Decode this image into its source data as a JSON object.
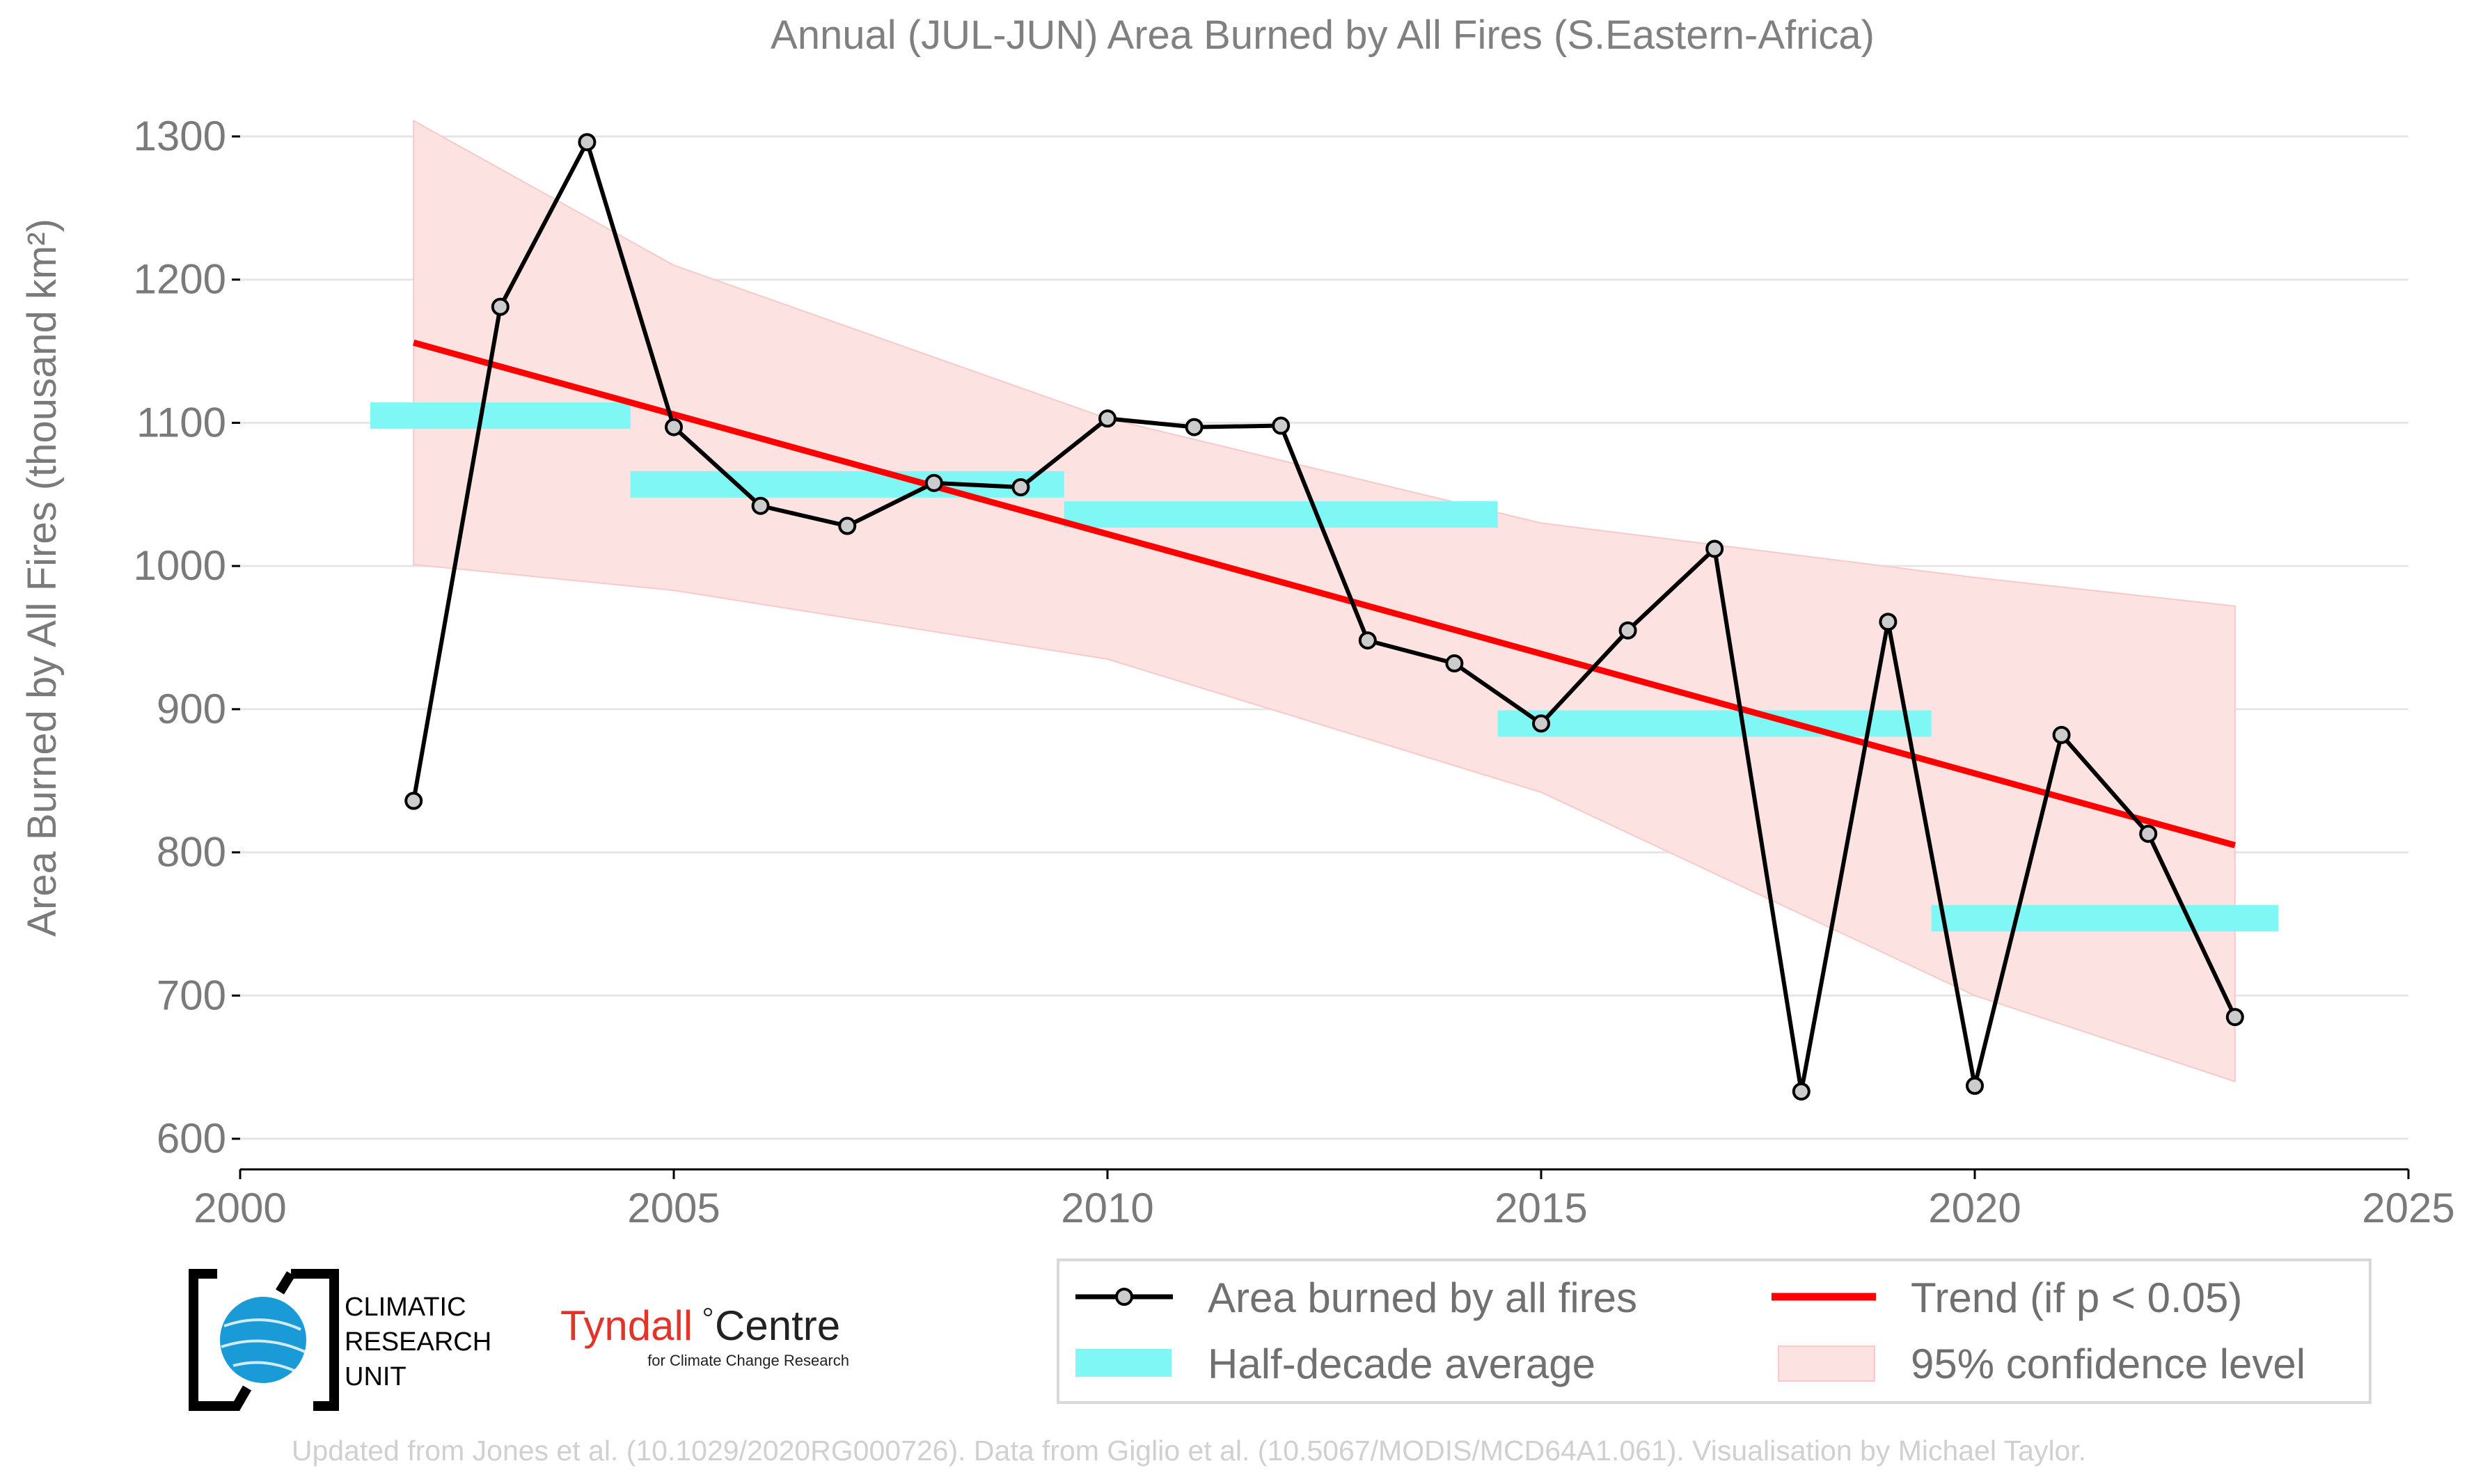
{
  "chart_data": {
    "type": "line",
    "title": "Annual (JUL-JUN) Area Burned by All Fires (S.Eastern-Africa)",
    "ylabel": "Area Burned by All Fires (thousand km²)",
    "xlabel": "",
    "xlim": [
      2000,
      2025
    ],
    "ylim": [
      600,
      1300
    ],
    "xticks": [
      "2000",
      "2005",
      "2010",
      "2015",
      "2020",
      "2025"
    ],
    "yticks": [
      "600",
      "700",
      "800",
      "900",
      "1000",
      "1100",
      "1200",
      "1300"
    ],
    "grid": "horizontal",
    "series": [
      {
        "name": "Area burned by all fires",
        "color": "#000000",
        "x": [
          2002,
          2003,
          2004,
          2005,
          2006,
          2007,
          2008,
          2009,
          2010,
          2011,
          2012,
          2013,
          2014,
          2015,
          2016,
          2017,
          2018,
          2019,
          2020,
          2021,
          2022,
          2023
        ],
        "y": [
          836,
          1181,
          1296,
          1097,
          1042,
          1028,
          1058,
          1055,
          1103,
          1097,
          1098,
          948,
          932,
          890,
          955,
          1012,
          633,
          961,
          637,
          882,
          813,
          685
        ]
      }
    ],
    "half_decade_average": {
      "name": "Half-decade average",
      "color": "#7ff7f5",
      "segments": [
        {
          "x0": 2001.5,
          "x1": 2004.5,
          "y": 1105
        },
        {
          "x0": 2004.5,
          "x1": 2009.5,
          "y": 1057
        },
        {
          "x0": 2009.5,
          "x1": 2014.5,
          "y": 1036
        },
        {
          "x0": 2014.5,
          "x1": 2019.5,
          "y": 890
        },
        {
          "x0": 2019.5,
          "x1": 2023.5,
          "y": 754
        }
      ]
    },
    "trend": {
      "name": "Trend (if p < 0.05)",
      "color": "#ff0000",
      "x": [
        2002,
        2023
      ],
      "y": [
        1156,
        805
      ]
    },
    "confidence_band": {
      "name": "95% confidence level",
      "color": "#fde2e2",
      "x": [
        2002,
        2005,
        2010,
        2015,
        2020,
        2023
      ],
      "upper": [
        1311,
        1210,
        1103,
        1030,
        992,
        972
      ],
      "lower": [
        1001,
        983,
        935,
        842,
        700,
        640
      ]
    },
    "legend": {
      "placement": "bottom-right",
      "entries": [
        "Area burned by all fires",
        "Trend (if p < 0.05)",
        "Half-decade average",
        "95% confidence level"
      ]
    }
  },
  "logos": {
    "cru": [
      "CLIMATIC",
      "RESEARCH",
      "UNIT"
    ],
    "tyndall_main": "Tyndall",
    "tyndall_centre": "Centre",
    "tyndall_sub": "for Climate Change Research"
  },
  "footer": "Updated from Jones et al. (10.1029/2020RG000726). Data from Giglio et al. (10.5067/MODIS/MCD64A1.061). Visualisation by Michael Taylor."
}
